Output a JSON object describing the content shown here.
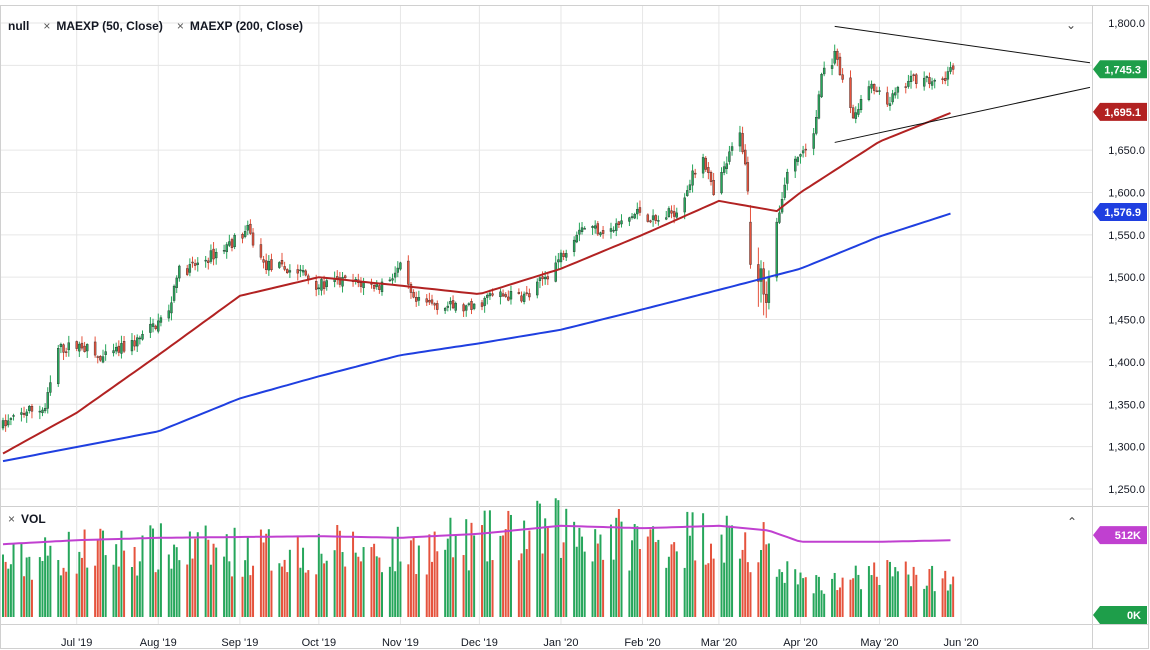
{
  "header": {
    "symbol": "null",
    "indicators": [
      {
        "label": "MAEXP (50, Close)"
      },
      {
        "label": "MAEXP (200, Close)"
      }
    ],
    "remove_glyph": "×",
    "collapse_glyph": "⌄"
  },
  "volume_panel": {
    "label": "VOL",
    "remove_glyph": "×",
    "collapse_glyph": "⌃"
  },
  "colors": {
    "up": "#26a65b",
    "down": "#e5533d",
    "ma50": "#b22222",
    "ma200": "#1f3fe0",
    "vol_ma": "#c040d0",
    "price_badge": "#1e9e4a",
    "grid": "#e6e6e6"
  },
  "chart_data": {
    "type": "candlestick",
    "title": "",
    "x_range": [
      "2019-06-03",
      "2020-07-20"
    ],
    "price_axis": {
      "ylim": [
        1230,
        1820
      ],
      "ticks": [
        "1,800.0",
        "1,750.0",
        "1,650.0",
        "1,600.0",
        "1,550.0",
        "1,500.0",
        "1,450.0",
        "1,400.0",
        "1,350.0",
        "1,300.0",
        "1,250.0"
      ],
      "tick_values": [
        1800,
        1750,
        1650,
        1600,
        1550,
        1500,
        1450,
        1400,
        1350,
        1300,
        1250
      ]
    },
    "x_axis": {
      "ticks": [
        {
          "label": "Jul '19",
          "date": "2019-07-01"
        },
        {
          "label": "Aug '19",
          "date": "2019-08-01"
        },
        {
          "label": "Sep '19",
          "date": "2019-09-01"
        },
        {
          "label": "Oct '19",
          "date": "2019-10-01"
        },
        {
          "label": "Nov '19",
          "date": "2019-11-01"
        },
        {
          "label": "Dec '19",
          "date": "2019-12-01"
        },
        {
          "label": "Jan '20",
          "date": "2020-01-01"
        },
        {
          "label": "Feb '20",
          "date": "2020-02-01"
        },
        {
          "label": "Mar '20",
          "date": "2020-03-01"
        },
        {
          "label": "Apr '20",
          "date": "2020-04-01"
        },
        {
          "label": "May '20",
          "date": "2020-05-01"
        },
        {
          "label": "Jun '20",
          "date": "2020-06-01"
        }
      ]
    },
    "price_anchors": [
      [
        "2019-06-03",
        1325
      ],
      [
        "2019-06-12",
        1342
      ],
      [
        "2019-06-19",
        1345
      ],
      [
        "2019-06-24",
        1415
      ],
      [
        "2019-07-03",
        1420
      ],
      [
        "2019-07-10",
        1402
      ],
      [
        "2019-07-24",
        1425
      ],
      [
        "2019-08-05",
        1458
      ],
      [
        "2019-08-08",
        1505
      ],
      [
        "2019-08-16",
        1515
      ],
      [
        "2019-08-26",
        1535
      ],
      [
        "2019-09-04",
        1555
      ],
      [
        "2019-09-10",
        1515
      ],
      [
        "2019-09-25",
        1505
      ],
      [
        "2019-10-01",
        1490
      ],
      [
        "2019-10-10",
        1495
      ],
      [
        "2019-10-24",
        1490
      ],
      [
        "2019-11-01",
        1510
      ],
      [
        "2019-11-06",
        1470
      ],
      [
        "2019-11-14",
        1468
      ],
      [
        "2019-11-28",
        1462
      ],
      [
        "2019-12-05",
        1478
      ],
      [
        "2019-12-20",
        1478
      ],
      [
        "2019-12-31",
        1520
      ],
      [
        "2020-01-08",
        1560
      ],
      [
        "2020-01-20",
        1555
      ],
      [
        "2020-01-31",
        1578
      ],
      [
        "2020-02-06",
        1565
      ],
      [
        "2020-02-14",
        1580
      ],
      [
        "2020-02-24",
        1645
      ],
      [
        "2020-02-28",
        1595
      ],
      [
        "2020-03-09",
        1675
      ],
      [
        "2020-03-16",
        1520
      ],
      [
        "2020-03-19",
        1480
      ],
      [
        "2020-03-23",
        1565
      ],
      [
        "2020-03-27",
        1625
      ],
      [
        "2020-04-06",
        1665
      ],
      [
        "2020-04-09",
        1740
      ],
      [
        "2020-04-14",
        1760
      ],
      [
        "2020-04-21",
        1690
      ],
      [
        "2020-04-27",
        1725
      ],
      [
        "2020-05-04",
        1705
      ],
      [
        "2020-05-12",
        1730
      ],
      [
        "2020-05-18",
        1740
      ],
      [
        "2020-05-21",
        1725
      ],
      [
        "2020-05-29",
        1745
      ]
    ],
    "crash_candles": [
      [
        "2020-03-13",
        1565,
        1515,
        1585,
        1510
      ],
      [
        "2020-03-16",
        1515,
        1495,
        1535,
        1465
      ],
      [
        "2020-03-17",
        1495,
        1510,
        1520,
        1470
      ],
      [
        "2020-03-18",
        1510,
        1480,
        1518,
        1455
      ],
      [
        "2020-03-19",
        1480,
        1470,
        1495,
        1452
      ],
      [
        "2020-03-20",
        1470,
        1500,
        1508,
        1462
      ],
      [
        "2020-03-23",
        1500,
        1565,
        1570,
        1495
      ]
    ],
    "ma50_anchors": [
      [
        "2019-06-03",
        1292
      ],
      [
        "2019-07-01",
        1340
      ],
      [
        "2019-08-01",
        1408
      ],
      [
        "2019-09-01",
        1478
      ],
      [
        "2019-10-01",
        1500
      ],
      [
        "2019-11-01",
        1490
      ],
      [
        "2019-12-01",
        1480
      ],
      [
        "2020-01-01",
        1510
      ],
      [
        "2020-02-01",
        1550
      ],
      [
        "2020-03-01",
        1590
      ],
      [
        "2020-03-23",
        1578
      ],
      [
        "2020-04-01",
        1600
      ],
      [
        "2020-05-01",
        1660
      ],
      [
        "2020-05-29",
        1695
      ]
    ],
    "ma200_anchors": [
      [
        "2019-06-03",
        1283
      ],
      [
        "2019-08-01",
        1318
      ],
      [
        "2019-09-01",
        1357
      ],
      [
        "2019-10-01",
        1383
      ],
      [
        "2019-11-01",
        1408
      ],
      [
        "2019-12-01",
        1422
      ],
      [
        "2020-01-01",
        1438
      ],
      [
        "2020-02-01",
        1462
      ],
      [
        "2020-03-01",
        1485
      ],
      [
        "2020-04-01",
        1510
      ],
      [
        "2020-05-01",
        1548
      ],
      [
        "2020-05-29",
        1576
      ]
    ],
    "trendlines": [
      {
        "name": "upper",
        "from": [
          "2020-04-14",
          1796
        ],
        "to": [
          "2020-07-20",
          1753
        ]
      },
      {
        "name": "lower",
        "from": [
          "2020-04-14",
          1659
        ],
        "to": [
          "2020-07-20",
          1724
        ]
      }
    ],
    "volume": {
      "ylim": [
        0,
        700000
      ],
      "avg_level": 512000,
      "period_levels": [
        [
          "2019-06-03",
          330000
        ],
        [
          "2019-07-01",
          410000
        ],
        [
          "2019-08-01",
          420000
        ],
        [
          "2019-09-01",
          410000
        ],
        [
          "2019-10-01",
          420000
        ],
        [
          "2019-11-01",
          410000
        ],
        [
          "2019-12-01",
          470000
        ],
        [
          "2020-01-01",
          550000
        ],
        [
          "2020-02-01",
          470000
        ],
        [
          "2020-03-01",
          520000
        ],
        [
          "2020-03-23",
          400000
        ],
        [
          "2020-04-01",
          210000
        ],
        [
          "2020-05-01",
          260000
        ],
        [
          "2020-05-29",
          230000
        ]
      ],
      "vol_ma_anchors": [
        [
          "2019-06-03",
          455000
        ],
        [
          "2019-07-01",
          480000
        ],
        [
          "2019-08-01",
          495000
        ],
        [
          "2019-09-01",
          500000
        ],
        [
          "2019-10-01",
          505000
        ],
        [
          "2019-11-01",
          495000
        ],
        [
          "2019-12-01",
          520000
        ],
        [
          "2020-01-01",
          570000
        ],
        [
          "2020-02-01",
          555000
        ],
        [
          "2020-03-01",
          570000
        ],
        [
          "2020-03-20",
          540000
        ],
        [
          "2020-04-01",
          470000
        ],
        [
          "2020-05-01",
          470000
        ],
        [
          "2020-05-29",
          480000
        ]
      ]
    },
    "badges": {
      "last_price": "1,745.3",
      "ma50_value": "1,695.1",
      "ma200_value": "1,576.9",
      "vol_ma_value": "512K",
      "vol_zero": "0K"
    }
  }
}
